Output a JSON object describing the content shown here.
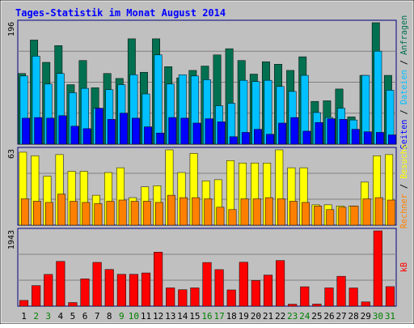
{
  "chart_data": {
    "type": "bar",
    "title": "Tages-Statistik im Monat August 2014",
    "categories": [
      "1",
      "2",
      "3",
      "4",
      "5",
      "6",
      "7",
      "8",
      "9",
      "10",
      "11",
      "12",
      "13",
      "14",
      "15",
      "16",
      "17",
      "18",
      "19",
      "20",
      "21",
      "22",
      "23",
      "24",
      "25",
      "26",
      "27",
      "28",
      "29",
      "30",
      "31"
    ],
    "weekend_days": [
      "2",
      "3",
      "9",
      "10",
      "16",
      "17",
      "23",
      "24",
      "30",
      "31"
    ],
    "panels": [
      {
        "id": "top",
        "ymax_label": "196",
        "ymax": 196,
        "right_label_parts": [
          "Seiten",
          " / ",
          "Dateien",
          " / ",
          "Anfragen"
        ],
        "series": [
          {
            "name": "Anfragen",
            "color": "#007050",
            "values": [
              114,
              168,
              132,
              159,
              96,
              135,
              91,
              114,
              106,
              170,
              116,
              170,
              125,
              107,
              119,
              126,
              144,
              154,
              135,
              113,
              133,
              129,
              119,
              141,
              69,
              70,
              89,
              44,
              111,
              196,
              111
            ]
          },
          {
            "name": "Dateien",
            "color": "#00C0FF",
            "values": [
              110,
              142,
              97,
              114,
              83,
              90,
              58,
              88,
              96,
              112,
              81,
              144,
              97,
              112,
              110,
              104,
              62,
              66,
              103,
              101,
              103,
              93,
              85,
              111,
              51,
              43,
              58,
              39,
              111,
              150,
              87
            ]
          },
          {
            "name": "Seiten",
            "color": "#0000FF",
            "values": [
              42,
              43,
              42,
              46,
              29,
              25,
              58,
              40,
              50,
              42,
              28,
              18,
              43,
              42,
              34,
              41,
              36,
              12,
              19,
              24,
              16,
              34,
              43,
              21,
              35,
              41,
              40,
              24,
              20,
              19,
              15
            ]
          }
        ]
      },
      {
        "id": "middle",
        "ymax_label": "63",
        "ymax": 63,
        "right_label_parts": [
          "Rechner",
          " / ",
          "Besuche"
        ],
        "series": [
          {
            "name": "Besuche",
            "color": "#FFFF00",
            "values": [
              61,
              58,
              41,
              59,
              45,
              45,
              25,
              44,
              48,
              23,
              32,
              33,
              63,
              44,
              60,
              37,
              38,
              54,
              52,
              52,
              52,
              63,
              48,
              48,
              17,
              17,
              16,
              16,
              36,
              58,
              59
            ]
          },
          {
            "name": "Rechner",
            "color": "#FF8000",
            "values": [
              22,
              20,
              19,
              26,
              20,
              19,
              18,
              20,
              21,
              20,
              20,
              19,
              25,
              23,
              23,
              22,
              15,
              13,
              22,
              22,
              23,
              22,
              20,
              19,
              16,
              13,
              15,
              16,
              22,
              23,
              21
            ]
          }
        ]
      },
      {
        "id": "bottom",
        "ymax_label": "1943",
        "ymax": 1943,
        "right_label_parts": [
          "kB"
        ],
        "series": [
          {
            "name": "kB",
            "color": "#FF0000",
            "values": [
              148,
              530,
              818,
              1154,
              93,
              704,
              1129,
              946,
              821,
              821,
              856,
              1393,
              471,
              424,
              471,
              1126,
              942,
              418,
              1133,
              660,
              802,
              1177,
              50,
              500,
              53,
              471,
              770,
              469,
              109,
              1943,
              503
            ]
          }
        ]
      }
    ]
  },
  "colors": {
    "frame": "#000080",
    "panel_bg": "#C0C0C0",
    "outer_bg": "#C0C0C0",
    "gridline": "#808080",
    "title_text": "#0000FF",
    "weekday_label": "#000000",
    "weekend_label": "#008000"
  }
}
